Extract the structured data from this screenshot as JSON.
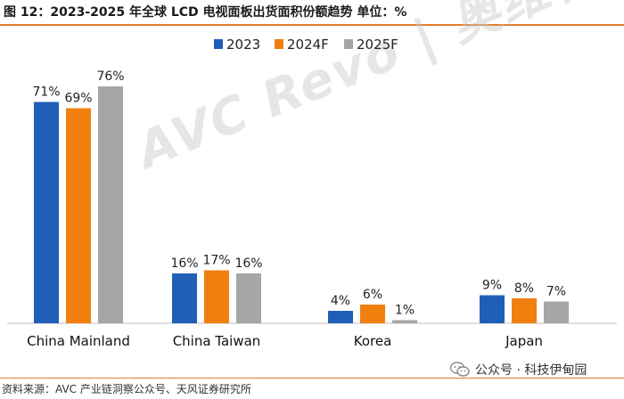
{
  "header": {
    "title": "图 12：2023-2025 年全球 LCD 电视面板出货面积份额趋势 单位：%"
  },
  "watermark": {
    "text": "AVC Revo | 奥维睿沃"
  },
  "footer": {
    "source": "资料来源：AVC 产业链洞察公众号、天风证券研究所",
    "wechat_label": "公众号 · 科技伊甸园"
  },
  "colors": {
    "accent": "#e07e2c",
    "s2023": "#1f5fb8",
    "s2024": "#f07f0f",
    "s2025": "#a6a6a6"
  },
  "chart_data": {
    "type": "bar",
    "categories": [
      "China Mainland",
      "China Taiwan",
      "Korea",
      "Japan"
    ],
    "series": [
      {
        "name": "2023",
        "values": [
          71,
          16,
          4,
          9
        ],
        "color": "#1f5fb8"
      },
      {
        "name": "2024F",
        "values": [
          69,
          17,
          6,
          8
        ],
        "color": "#f07f0f"
      },
      {
        "name": "2025F",
        "values": [
          76,
          16,
          1,
          7
        ],
        "color": "#a6a6a6"
      }
    ],
    "value_suffix": "%",
    "ylim": [
      0,
      80
    ],
    "grid": false,
    "legend_position": "top-right",
    "xlabel": "",
    "ylabel": ""
  }
}
